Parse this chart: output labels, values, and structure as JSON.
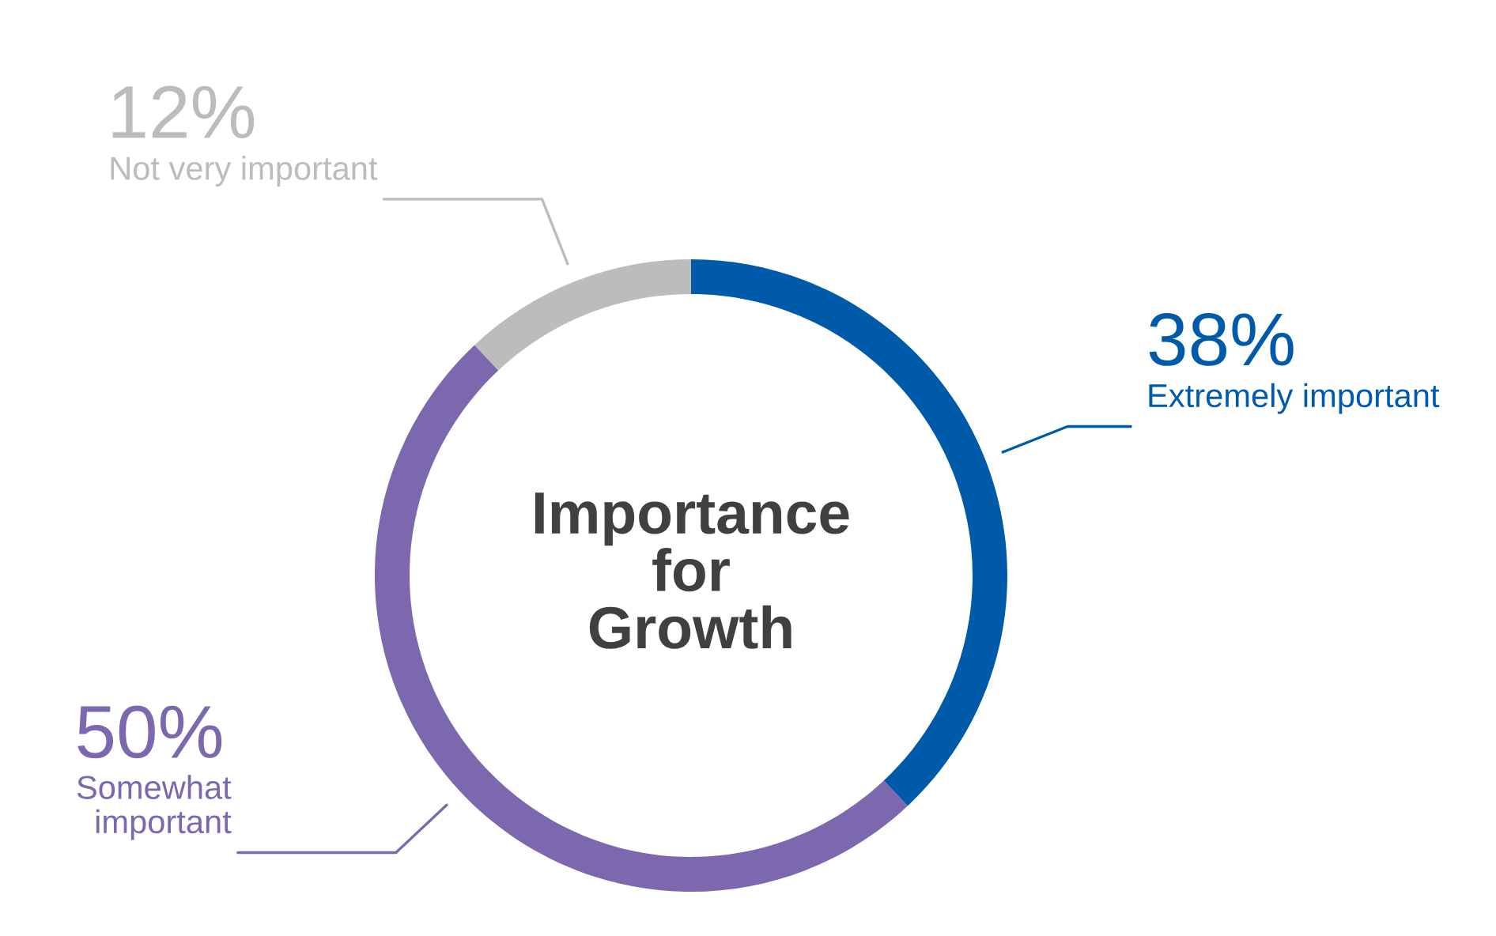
{
  "chart_data": {
    "type": "donut",
    "title": "Importance\nfor\nGrowth",
    "categories": [
      "Extremely important",
      "Somewhat\nimportant",
      "Not very important"
    ],
    "values": [
      38,
      50,
      12
    ],
    "colors": [
      "#005aaa",
      "#7b68ae",
      "#bcbcbc"
    ],
    "value_labels": [
      "38%",
      "50%",
      "12%"
    ]
  }
}
